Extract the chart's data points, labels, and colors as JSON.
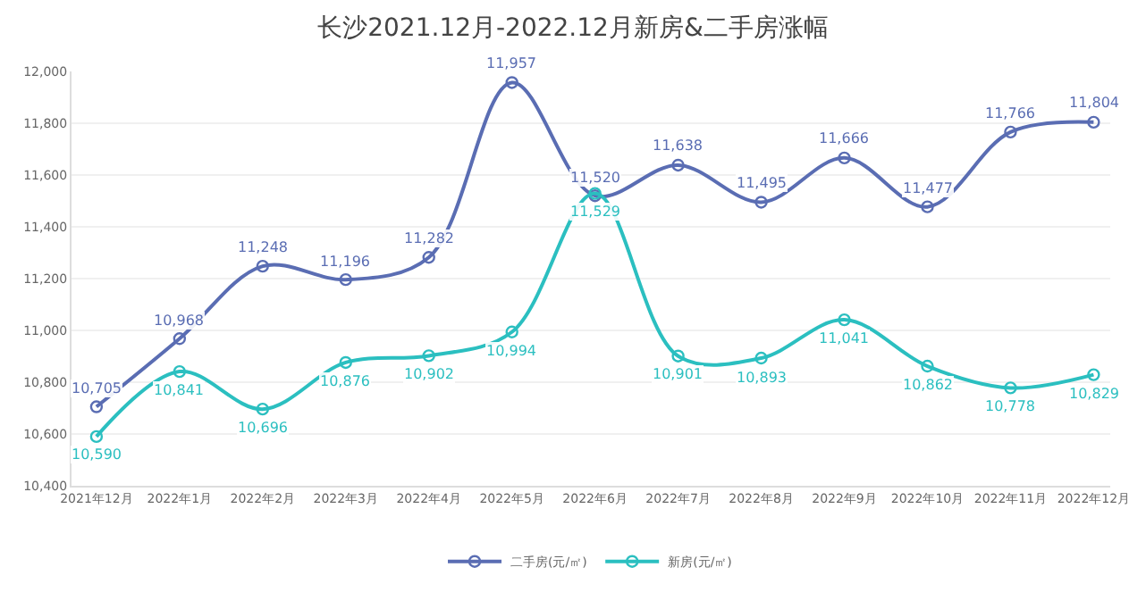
{
  "chart_data": {
    "type": "line",
    "title": "长沙2021.12月-2022.12月新房&二手房涨幅",
    "categories": [
      "2021年12月",
      "2022年1月",
      "2022年2月",
      "2022年3月",
      "2022年4月",
      "2022年5月",
      "2022年6月",
      "2022年7月",
      "2022年8月",
      "2022年9月",
      "2022年10月",
      "2022年11月",
      "2022年12月"
    ],
    "series": [
      {
        "name": "二手房(元/㎡)",
        "color": "#5a6db3",
        "values": [
          10705,
          10968,
          11248,
          11196,
          11282,
          11957,
          11520,
          11638,
          11495,
          11666,
          11477,
          11766,
          11804
        ],
        "value_labels": [
          "10,705",
          "10,968",
          "11,248",
          "11,196",
          "11,282",
          "11,957",
          "11,520",
          "11,638",
          "11,495",
          "11,666",
          "11,477",
          "11,766",
          "11,804"
        ]
      },
      {
        "name": "新房(元/㎡)",
        "color": "#2bbfc0",
        "values": [
          10590,
          10841,
          10696,
          10876,
          10902,
          10994,
          11529,
          10901,
          10893,
          11041,
          10862,
          10778,
          10829
        ],
        "value_labels": [
          "10,590",
          "10,841",
          "10,696",
          "10,876",
          "10,902",
          "10,994",
          "11,529",
          "10,901",
          "10,893",
          "11,041",
          "10,862",
          "10,778",
          "10,829"
        ]
      }
    ],
    "ylim": [
      10400,
      12000
    ],
    "yticks": [
      {
        "value": 10400,
        "label": "10,400"
      },
      {
        "value": 10600,
        "label": "10,600"
      },
      {
        "value": 10800,
        "label": "10,800"
      },
      {
        "value": 11000,
        "label": "11,000"
      },
      {
        "value": 11200,
        "label": "11,200"
      },
      {
        "value": 11400,
        "label": "11,400"
      },
      {
        "value": 11600,
        "label": "11,600"
      },
      {
        "value": 11800,
        "label": "11,800"
      },
      {
        "value": 12000,
        "label": "12,000"
      }
    ],
    "grid": "y",
    "legend": "bottom",
    "marker": "circle",
    "line_style": "solid"
  }
}
